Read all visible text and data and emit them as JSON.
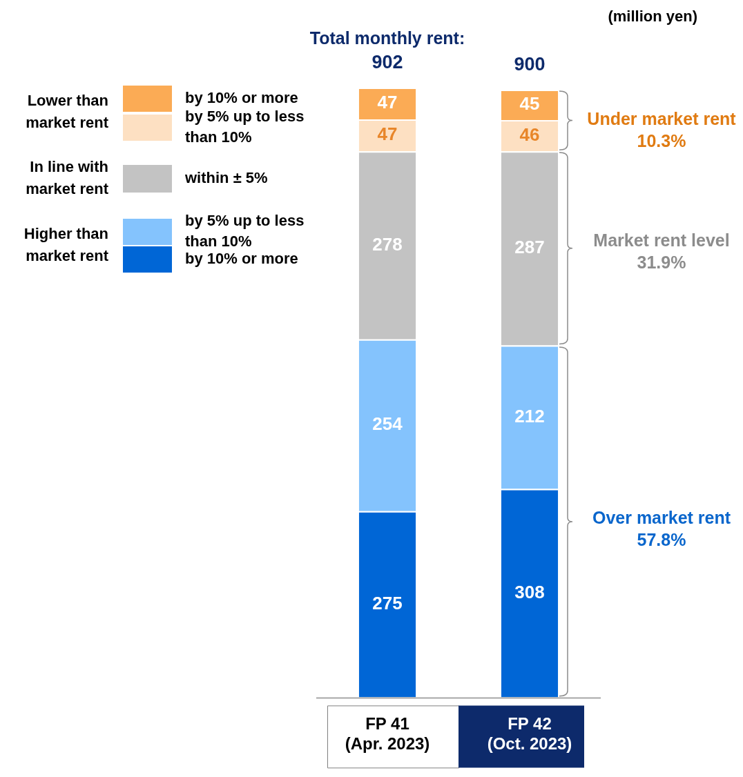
{
  "chart_data": {
    "type": "bar",
    "stacked": true,
    "title": "Total monthly rent:",
    "categories": [
      "FP 41\n(Apr. 2023)",
      "FP 42\n(Oct. 2023)"
    ],
    "series": [
      {
        "name": "by 10% or more",
        "color": "#0066d6",
        "values": [
          275,
          308
        ]
      },
      {
        "name": "by 5% up to less than 10%",
        "color": "#84c3fd",
        "values": [
          254,
          212
        ]
      },
      {
        "name": "within ± 5%",
        "color": "#c3c3c3",
        "values": [
          278,
          287
        ]
      },
      {
        "name": "by 5% up to less than 10%",
        "color": "#fde0c2",
        "values": [
          47,
          46
        ]
      },
      {
        "name": "by 10% or more",
        "color": "#fbab55",
        "values": [
          47,
          45
        ]
      }
    ],
    "data_labels": true,
    "totals": [
      "902",
      "900"
    ],
    "tick_labels": "x",
    "legend": "left",
    "grid": false,
    "annotations": [
      "(million yen)",
      "Lower than market rent",
      "In line with market rent",
      "Higher than market rent",
      "Under market rent 10.3%",
      "Market rent level 31.9%",
      "Over market rent 57.8%"
    ]
  }
}
